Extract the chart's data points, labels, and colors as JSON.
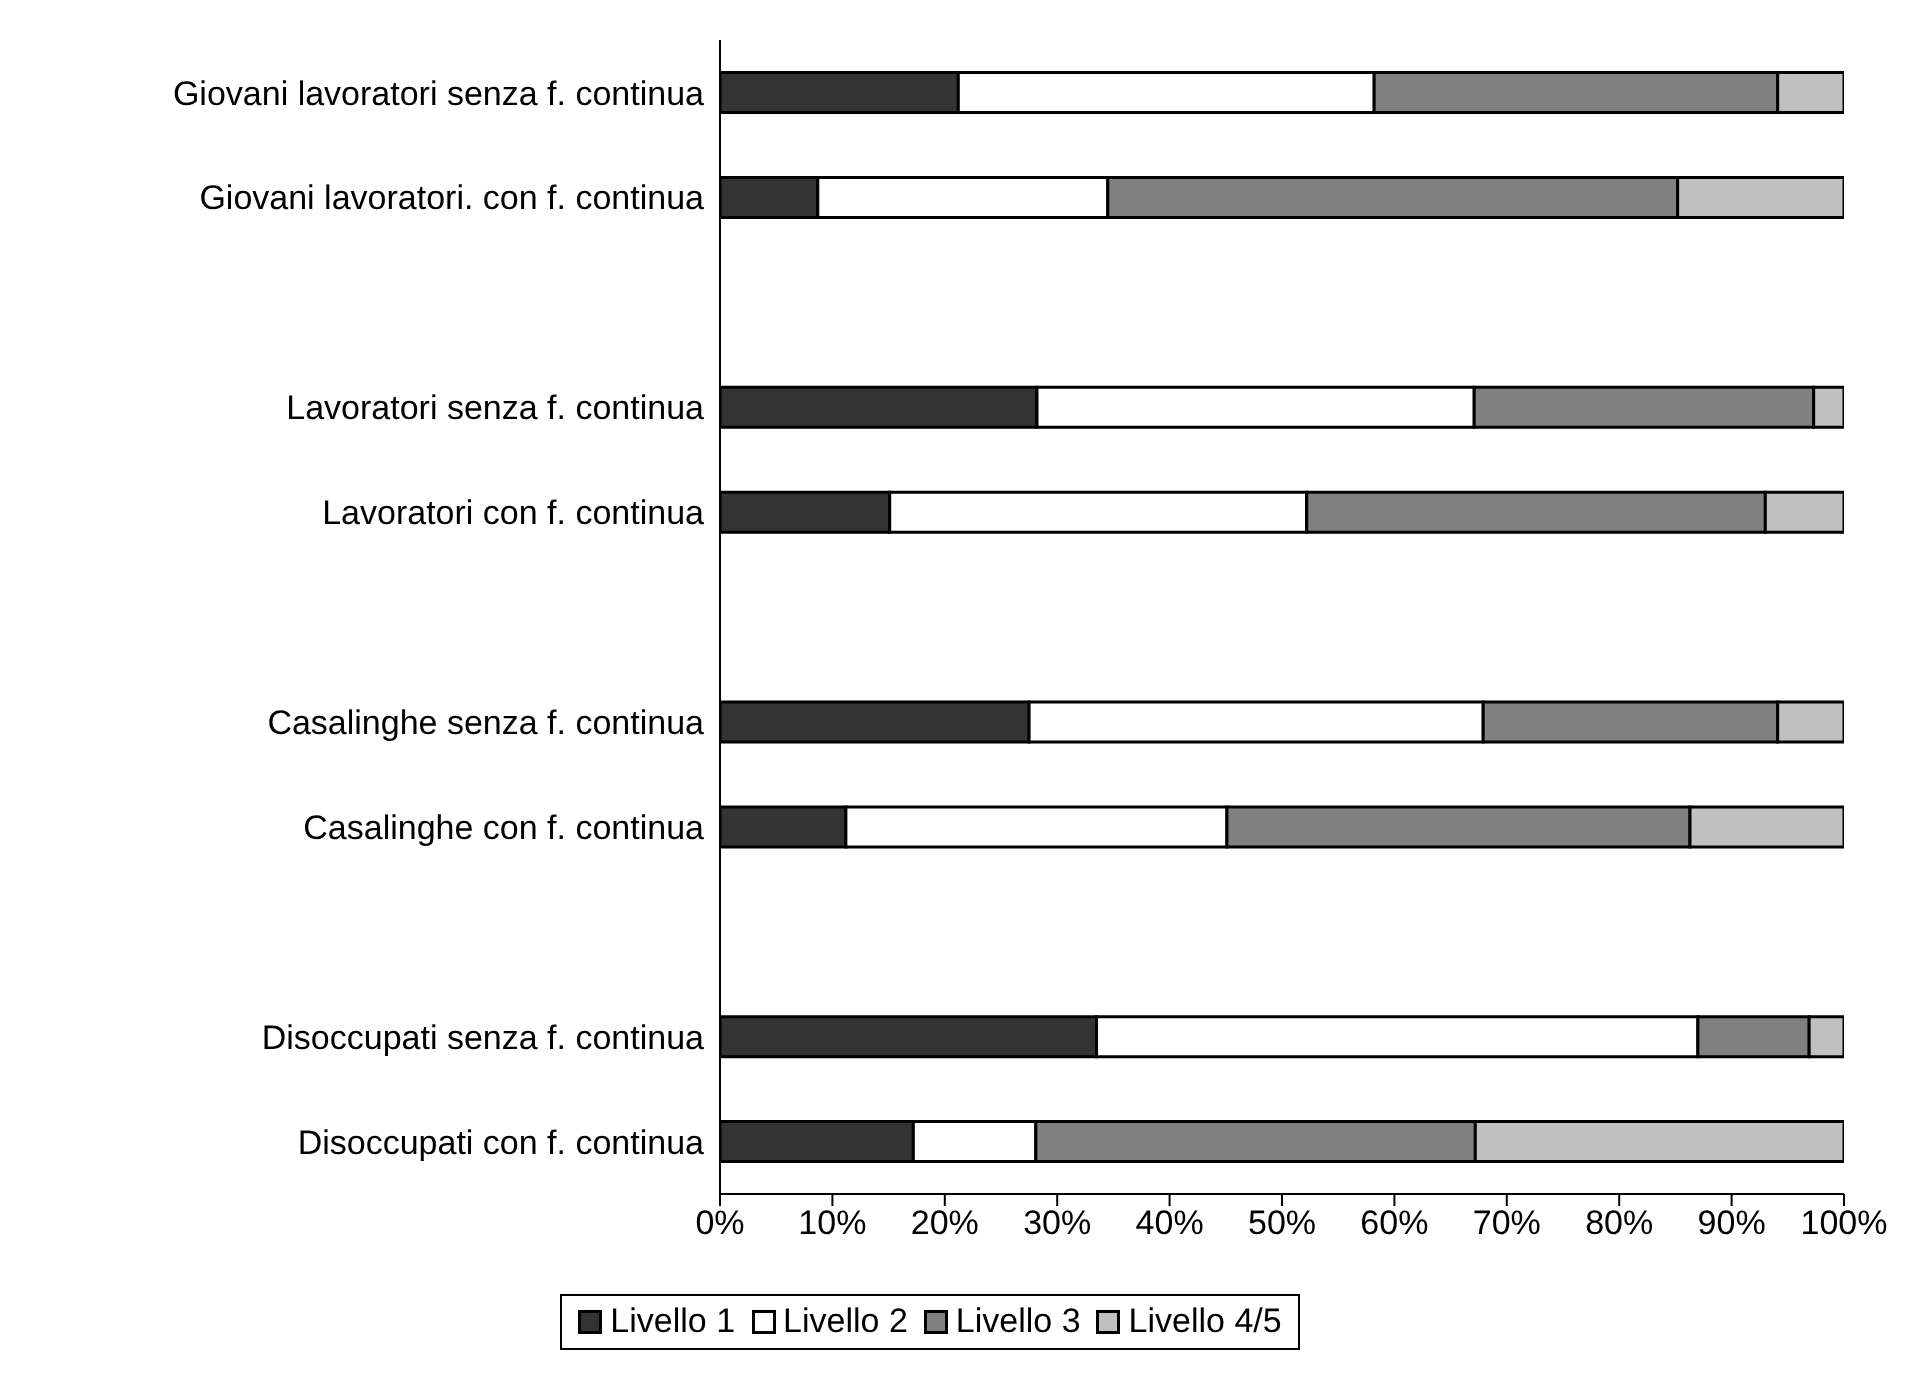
{
  "chart_data": {
    "type": "bar",
    "orientation": "horizontal",
    "stacked": true,
    "categories": [
      "Giovani lavoratori senza f. continua",
      "Giovani lavoratori. con f. continua",
      null,
      "Lavoratori senza f. continua",
      "Lavoratori con f. continua",
      null,
      "Casalinghe senza f. continua",
      "Casalinghe con f. continua",
      null,
      "Disoccupati senza f. continua",
      "Disoccupati con f. continua"
    ],
    "series": [
      {
        "name": "Livello 1",
        "color": "#333333",
        "values": [
          21.2,
          8.7,
          null,
          28.2,
          15.1,
          null,
          27.5,
          11.2,
          null,
          33.5,
          17.2
        ]
      },
      {
        "name": "Livello 2",
        "color": "#ffffff",
        "values": [
          37.0,
          25.8,
          null,
          38.9,
          37.1,
          null,
          40.4,
          33.9,
          null,
          53.5,
          10.9
        ]
      },
      {
        "name": "Livello 3",
        "color": "#808080",
        "values": [
          35.9,
          50.7,
          null,
          30.2,
          40.8,
          null,
          26.2,
          41.2,
          null,
          9.9,
          39.1
        ]
      },
      {
        "name": "Livello 4/5",
        "color": "#c0c0c0",
        "values": [
          5.9,
          14.8,
          null,
          2.7,
          7.0,
          null,
          5.9,
          13.7,
          null,
          3.1,
          32.8
        ]
      }
    ],
    "xlim": [
      0,
      100
    ],
    "xticks": [
      {
        "value": 0,
        "label": "0%"
      },
      {
        "value": 10,
        "label": "10%"
      },
      {
        "value": 20,
        "label": "20%"
      },
      {
        "value": 30,
        "label": "30%"
      },
      {
        "value": 40,
        "label": "40%"
      },
      {
        "value": 50,
        "label": "50%"
      },
      {
        "value": 60,
        "label": "60%"
      },
      {
        "value": 70,
        "label": "70%"
      },
      {
        "value": 80,
        "label": "80%"
      },
      {
        "value": 90,
        "label": "90%"
      },
      {
        "value": 100,
        "label": "100%"
      }
    ],
    "grid": false,
    "legend": "bottom"
  }
}
